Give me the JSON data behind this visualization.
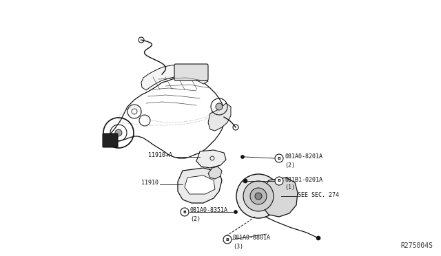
{
  "bg_color": "#ffffff",
  "fig_width": 6.4,
  "fig_height": 3.72,
  "dpi": 100,
  "ref_code": "R275004S",
  "label_081A0_8201A": "081A0-8201A",
  "label_081A0_8201A_qty": "(2)",
  "label_081B1_0201A": "081B1-0201A",
  "label_081B1_0201A_qty": "(1)",
  "label_see_sec": "SEE SEC. 274",
  "label_11910A": "11910+A",
  "label_11910": "11910",
  "label_081A0_8351A": "081A0-8351A",
  "label_081A0_8351A_qty": "(2)",
  "label_081A0_8801A": "081A0-8801A",
  "label_081A0_8801A_qty": "(3)"
}
